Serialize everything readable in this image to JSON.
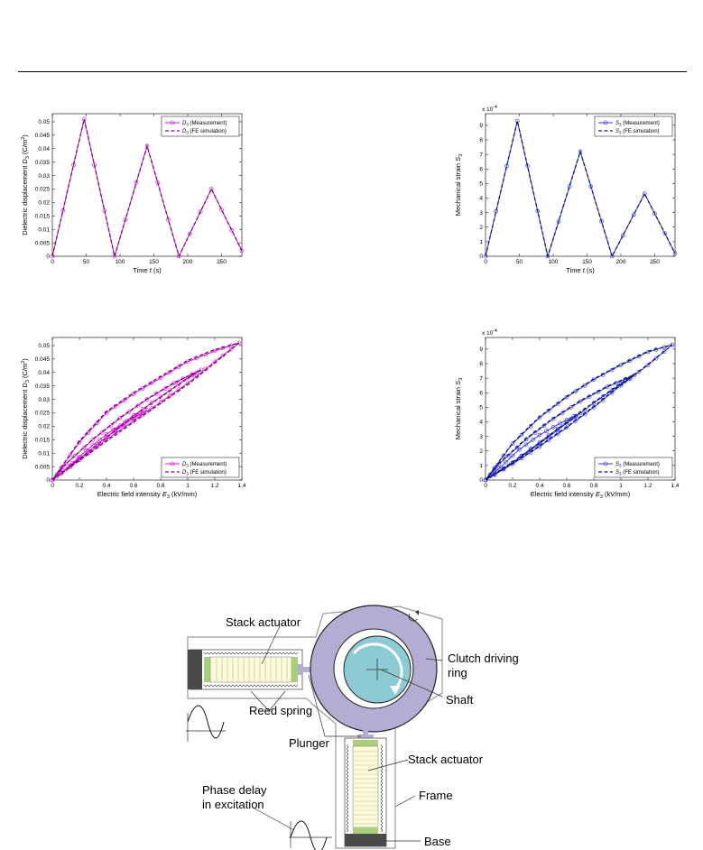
{
  "chart_data": [
    {
      "id": "d3_time",
      "type": "line",
      "xlabel_main": "Time",
      "xlabel_sym": "t",
      "xlabel_unit": "(s)",
      "ylabel_main": "Dielectric displacement",
      "ylabel_sym": "D",
      "ylabel_sub": "3",
      "ylabel_unit": "(C/m",
      "ylabel_sup": "2",
      "ylabel_close": ")",
      "xlim": [
        0,
        280
      ],
      "ylim": [
        0,
        0.053
      ],
      "xticks": [
        0,
        50,
        100,
        150,
        200,
        250
      ],
      "yticks": [
        0,
        0.005,
        0.01,
        0.015,
        0.02,
        0.025,
        0.03,
        0.035,
        0.04,
        0.045,
        0.05
      ],
      "ytick_labels": [
        "0",
        "0.005",
        "0.01",
        "0.015",
        "0.02",
        "0.025",
        "0.03",
        "0.035",
        "0.04",
        "0.045",
        "0.05"
      ],
      "exponent_label": "",
      "color": "#d200d2",
      "sim_color": "#7a0a7a",
      "legend_position": "top-right",
      "series": [
        {
          "name_sym": "D",
          "name_sub": "3",
          "name_text": " (Measurement)",
          "style": "marker-line",
          "x": [
            0,
            47,
            92,
            140,
            187,
            235,
            280
          ],
          "y": [
            0,
            0.051,
            0,
            0.041,
            0,
            0.025,
            0.002
          ]
        },
        {
          "name_sym": "D",
          "name_sub": "3",
          "name_text": " (FE simulation)",
          "style": "dashed",
          "x": [
            0,
            47,
            92,
            140,
            187,
            235,
            280
          ],
          "y": [
            0,
            0.051,
            0,
            0.041,
            0,
            0.025,
            0.002
          ]
        }
      ]
    },
    {
      "id": "s3_time",
      "type": "line",
      "xlabel_main": "Time",
      "xlabel_sym": "t",
      "xlabel_unit": "(s)",
      "ylabel_main": "Mechanical strain",
      "ylabel_sym": "S",
      "ylabel_sub": "3",
      "ylabel_unit": "",
      "ylabel_sup": "",
      "ylabel_close": "",
      "xlim": [
        0,
        280
      ],
      "ylim": [
        0,
        9.8
      ],
      "xticks": [
        0,
        50,
        100,
        150,
        200,
        250
      ],
      "yticks": [
        0,
        1,
        2,
        3,
        4,
        5,
        6,
        7,
        8,
        9
      ],
      "ytick_labels": [
        "0",
        "1",
        "2",
        "3",
        "4",
        "5",
        "6",
        "7",
        "8",
        "9"
      ],
      "exponent_label": "x 10",
      "exponent_sup": "-4",
      "color": "#2525e0",
      "sim_color": "#0a1a6e",
      "legend_position": "top-right",
      "series": [
        {
          "name_sym": "S",
          "name_sub": "3",
          "name_text": " (Measurement)",
          "style": "marker-line",
          "x": [
            0,
            47,
            92,
            140,
            187,
            235,
            280
          ],
          "y": [
            0,
            9.3,
            0,
            7.2,
            0,
            4.3,
            0.2
          ]
        },
        {
          "name_sym": "S",
          "name_sub": "3",
          "name_text": " (FE simulation)",
          "style": "dashed",
          "x": [
            0,
            47,
            92,
            140,
            187,
            235,
            280
          ],
          "y": [
            0,
            9.3,
            0,
            7.2,
            0,
            4.3,
            0.2
          ]
        }
      ]
    },
    {
      "id": "d3_field",
      "type": "line",
      "xlabel_main": "Electric field intensity",
      "xlabel_sym": "E",
      "xlabel_sub": "3",
      "xlabel_unit": "(kV/mm)",
      "ylabel_main": "Dielectric displacement",
      "ylabel_sym": "D",
      "ylabel_sub": "3",
      "ylabel_unit": "(C/m",
      "ylabel_sup": "2",
      "ylabel_close": ")",
      "xlim": [
        0,
        1.4
      ],
      "ylim": [
        0,
        0.053
      ],
      "xticks": [
        0,
        0.2,
        0.4,
        0.6,
        0.8,
        1,
        1.2,
        1.4
      ],
      "xtick_labels": [
        "0",
        "0.2",
        "0.4",
        "0.6",
        "0.8",
        "1",
        "1.2",
        "1.4"
      ],
      "yticks": [
        0,
        0.005,
        0.01,
        0.015,
        0.02,
        0.025,
        0.03,
        0.035,
        0.04,
        0.045,
        0.05
      ],
      "ytick_labels": [
        "0",
        "0.005",
        "0.01",
        "0.015",
        "0.02",
        "0.025",
        "0.03",
        "0.035",
        "0.04",
        "0.045",
        "0.05"
      ],
      "exponent_label": "",
      "color": "#d200d2",
      "sim_color": "#7a0a7a",
      "legend_position": "bottom-right",
      "series": [
        {
          "name_sym": "D",
          "name_sub": "3",
          "name_text": " (Measurement)",
          "style": "marker-line",
          "x": [
            0,
            0.2,
            0.4,
            0.6,
            0.8,
            1.0,
            1.2,
            1.38,
            1.2,
            1.0,
            0.8,
            0.6,
            0.4,
            0.2,
            0,
            0.2,
            0.4,
            0.6,
            0.8,
            1.0,
            1.1,
            0.9,
            0.7,
            0.5,
            0.3,
            0.1,
            0,
            0.2,
            0.4,
            0.6,
            0.7,
            0.55,
            0.4,
            0.25,
            0.1,
            0
          ],
          "y": [
            0,
            0.0075,
            0.015,
            0.022,
            0.029,
            0.036,
            0.044,
            0.051,
            0.048,
            0.044,
            0.038,
            0.032,
            0.025,
            0.014,
            0,
            0.008,
            0.016,
            0.024,
            0.031,
            0.038,
            0.041,
            0.036,
            0.03,
            0.023,
            0.015,
            0.006,
            0,
            0.008,
            0.016,
            0.023,
            0.026,
            0.022,
            0.017,
            0.011,
            0.004,
            0
          ]
        },
        {
          "name_sym": "D",
          "name_sub": "3",
          "name_text": " (FE simulation)",
          "style": "dashed",
          "x": [
            0,
            0.2,
            0.4,
            0.6,
            0.8,
            1.0,
            1.2,
            1.38,
            1.2,
            1.0,
            0.8,
            0.6,
            0.4,
            0.2,
            0,
            0.2,
            0.4,
            0.6,
            0.8,
            1.0,
            1.1,
            0.9,
            0.7,
            0.5,
            0.3,
            0.1,
            0
          ],
          "y": [
            0,
            0.0072,
            0.0145,
            0.0215,
            0.0285,
            0.0355,
            0.0435,
            0.051,
            0.0485,
            0.0445,
            0.0385,
            0.0325,
            0.0255,
            0.0145,
            0,
            0.0078,
            0.0158,
            0.0238,
            0.0308,
            0.0378,
            0.041,
            0.0362,
            0.0302,
            0.0232,
            0.0152,
            0.006,
            0
          ]
        }
      ]
    },
    {
      "id": "s3_field",
      "type": "line",
      "xlabel_main": "Electric field intensity",
      "xlabel_sym": "E",
      "xlabel_sub": "3",
      "xlabel_unit": "(kV/mm)",
      "ylabel_main": "Mechanical strain",
      "ylabel_sym": "S",
      "ylabel_sub": "3",
      "ylabel_unit": "",
      "ylabel_sup": "",
      "ylabel_close": "",
      "xlim": [
        0,
        1.4
      ],
      "ylim": [
        0,
        9.8
      ],
      "xticks": [
        0,
        0.2,
        0.4,
        0.6,
        0.8,
        1,
        1.2,
        1.4
      ],
      "xtick_labels": [
        "0",
        "0.2",
        "0.4",
        "0.6",
        "0.8",
        "1",
        "1.2",
        "1.4"
      ],
      "yticks": [
        0,
        1,
        2,
        3,
        4,
        5,
        6,
        7,
        8,
        9
      ],
      "ytick_labels": [
        "0",
        "1",
        "2",
        "3",
        "4",
        "5",
        "6",
        "7",
        "8",
        "9"
      ],
      "exponent_label": "x 10",
      "exponent_sup": "-4",
      "color": "#2525e0",
      "sim_color": "#0a1a6e",
      "legend_position": "bottom-right",
      "series": [
        {
          "name_sym": "S",
          "name_sub": "3",
          "name_text": " (Measurement)",
          "style": "marker-line",
          "x": [
            0,
            0.2,
            0.4,
            0.6,
            0.8,
            1.0,
            1.2,
            1.38,
            1.2,
            1.0,
            0.8,
            0.6,
            0.4,
            0.2,
            0,
            0.2,
            0.4,
            0.6,
            0.8,
            1.0,
            1.1,
            0.9,
            0.7,
            0.5,
            0.3,
            0.1,
            0,
            0.2,
            0.4,
            0.6,
            0.7,
            0.55,
            0.4,
            0.25,
            0.1,
            0
          ],
          "y": [
            0,
            1.1,
            2.3,
            3.6,
            5.0,
            6.5,
            7.9,
            9.3,
            8.8,
            7.9,
            6.9,
            5.7,
            4.3,
            2.5,
            0,
            1.2,
            2.5,
            3.9,
            5.3,
            6.6,
            7.2,
            6.4,
            5.4,
            4.2,
            2.8,
            1.1,
            0,
            1.2,
            2.6,
            4.0,
            4.6,
            3.9,
            3.1,
            2.1,
            0.8,
            0
          ]
        },
        {
          "name_sym": "S",
          "name_sub": "3",
          "name_text": " (FE simulation)",
          "style": "dashed",
          "x": [
            0,
            0.2,
            0.4,
            0.6,
            0.8,
            1.0,
            1.2,
            1.38,
            1.2,
            1.0,
            0.8,
            0.6,
            0.4,
            0.2,
            0,
            0.2,
            0.4,
            0.6,
            0.8,
            1.0,
            1.1,
            0.9,
            0.7,
            0.5,
            0.3,
            0.1,
            0
          ],
          "y": [
            0,
            1.15,
            2.35,
            3.65,
            5.05,
            6.55,
            7.95,
            9.3,
            8.85,
            7.95,
            6.95,
            5.75,
            4.35,
            2.55,
            0,
            1.25,
            2.55,
            3.95,
            5.35,
            6.65,
            7.25,
            6.45,
            5.45,
            4.25,
            2.85,
            1.15,
            0
          ]
        }
      ]
    }
  ],
  "diagram": {
    "labels": {
      "stack_actuator_top": "Stack actuator",
      "reed_spring": "Reed spring",
      "plunger": "Plunger",
      "clutch_line1": "Clutch driving",
      "clutch_line2": "ring",
      "shaft": "Shaft",
      "stack_actuator_bottom": "Stack actuator",
      "frame": "Frame",
      "base": "Base",
      "phase_line1": "Phase delay",
      "phase_line2": "in excitation"
    },
    "colors": {
      "ring": "#b4acd2",
      "shaft": "#8ccad4",
      "actuator": "#fdfbd6",
      "actuator_end": "#a8d07a",
      "base": "#4a4a4a",
      "frame": "#ffffff"
    }
  }
}
